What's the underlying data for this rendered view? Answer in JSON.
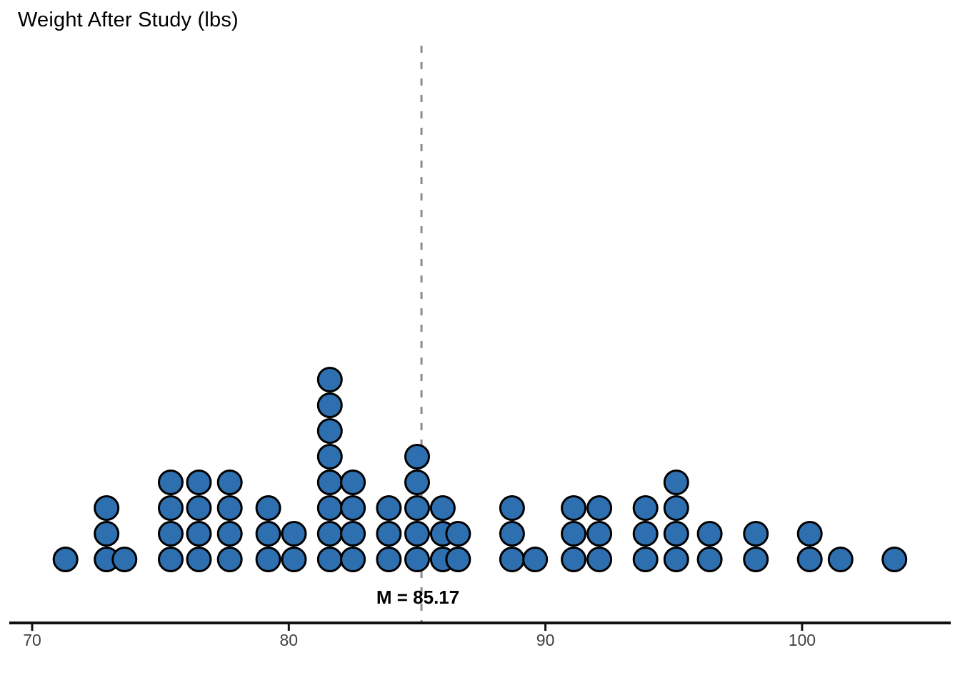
{
  "chart_data": {
    "type": "dotplot",
    "title": "Weight After Study (lbs)",
    "xlabel": "",
    "ylabel": "",
    "x_ticks": [
      70,
      80,
      90,
      100
    ],
    "xlim": [
      69.2,
      105.8
    ],
    "grid": false,
    "n_points": 72,
    "mean": 85.17,
    "mean_label": "M = 85.17",
    "stacks": [
      {
        "value": 71.3,
        "count": 1
      },
      {
        "value": 72.9,
        "count": 3
      },
      {
        "value": 73.6,
        "count": 1
      },
      {
        "value": 75.4,
        "count": 4
      },
      {
        "value": 76.5,
        "count": 4
      },
      {
        "value": 77.7,
        "count": 4
      },
      {
        "value": 79.2,
        "count": 3
      },
      {
        "value": 80.2,
        "count": 2
      },
      {
        "value": 81.6,
        "count": 8
      },
      {
        "value": 82.5,
        "count": 4
      },
      {
        "value": 83.9,
        "count": 3
      },
      {
        "value": 85.0,
        "count": 5
      },
      {
        "value": 86.0,
        "count": 3
      },
      {
        "value": 86.6,
        "count": 2
      },
      {
        "value": 88.7,
        "count": 3
      },
      {
        "value": 89.6,
        "count": 1
      },
      {
        "value": 91.1,
        "count": 3
      },
      {
        "value": 92.1,
        "count": 3
      },
      {
        "value": 93.9,
        "count": 3
      },
      {
        "value": 95.1,
        "count": 4
      },
      {
        "value": 96.4,
        "count": 2
      },
      {
        "value": 98.2,
        "count": 2
      },
      {
        "value": 100.3,
        "count": 2
      },
      {
        "value": 101.5,
        "count": 1
      },
      {
        "value": 103.6,
        "count": 1
      }
    ],
    "colors": {
      "dot_fill": "#2e6fb0",
      "dot_stroke": "#000000",
      "mean_line": "#8c8c8c",
      "axis_line": "#111111",
      "tick_label": "#404040",
      "mean_label_color": "#000000"
    }
  }
}
